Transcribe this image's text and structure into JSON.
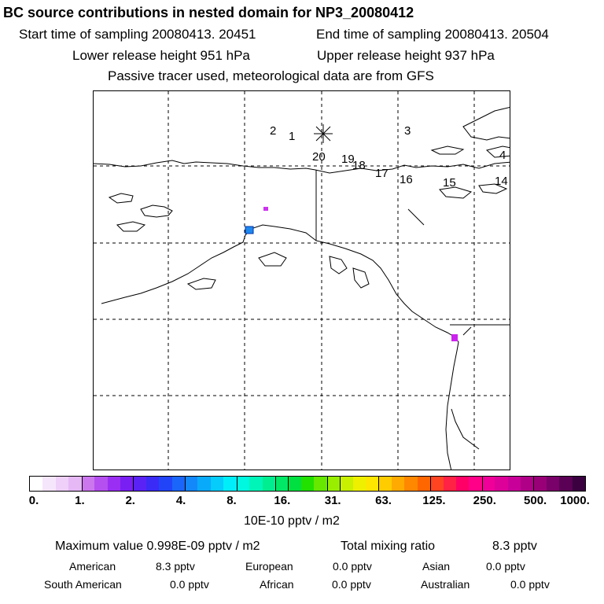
{
  "header": {
    "title": "BC  source contributions in nested domain for NP3_20080412",
    "start_label": "Start time of sampling 20080413. 20451",
    "end_label": "End time of sampling 20080413. 20504",
    "lower_label": "Lower release height  951 hPa",
    "upper_label": "Upper release height  937 hPa",
    "tracer_note": "Passive tracer used, meteorological data are from GFS"
  },
  "map": {
    "trajectory_labels": [
      "2",
      "1",
      "3",
      "20",
      "19",
      "18",
      "17",
      "16",
      "15",
      "4",
      "14"
    ],
    "release_marker": "release-star-icon"
  },
  "colorbar": {
    "ticks": [
      "0.",
      "1.",
      "2.",
      "4.",
      "8.",
      "16.",
      "31.",
      "63.",
      "125.",
      "250.",
      "500.",
      "1000."
    ],
    "colors": [
      "#ffffff",
      "#f5e6fb",
      "#eed0f8",
      "#e6b8f5",
      "#cc77ee",
      "#b54ff0",
      "#9a2ef2",
      "#7a1ff3",
      "#5a22f5",
      "#3a2bf7",
      "#2244f9",
      "#1a66fa",
      "#1288fa",
      "#0aaafa",
      "#05ccfa",
      "#00eefa",
      "#00f7e0",
      "#00f5b8",
      "#00ee90",
      "#00e866",
      "#00e040",
      "#22e000",
      "#66e800",
      "#99ee00",
      "#c8f000",
      "#eef000",
      "#ffe600",
      "#ffcc00",
      "#ffaa00",
      "#ff8800",
      "#ff6600",
      "#ff4422",
      "#ff2244",
      "#ff0066",
      "#ff0088",
      "#f00099",
      "#dd0099",
      "#c80099",
      "#b00088",
      "#990077",
      "#7a006a",
      "#5a0055",
      "#3a0040"
    ],
    "units": "10E-10 pptv / m2"
  },
  "summary": {
    "max_label": "Maximum value  0.998E-09 pptv / m2",
    "total_label": "Total mixing ratio",
    "total_value": "8.3 pptv",
    "regions": [
      {
        "name": "American",
        "value": "8.3 pptv"
      },
      {
        "name": "European",
        "value": "0.0 pptv"
      },
      {
        "name": "Asian",
        "value": "0.0 pptv"
      },
      {
        "name": "South American",
        "value": "0.0 pptv"
      },
      {
        "name": "African",
        "value": "0.0 pptv"
      },
      {
        "name": "Australian",
        "value": "0.0 pptv"
      }
    ]
  }
}
